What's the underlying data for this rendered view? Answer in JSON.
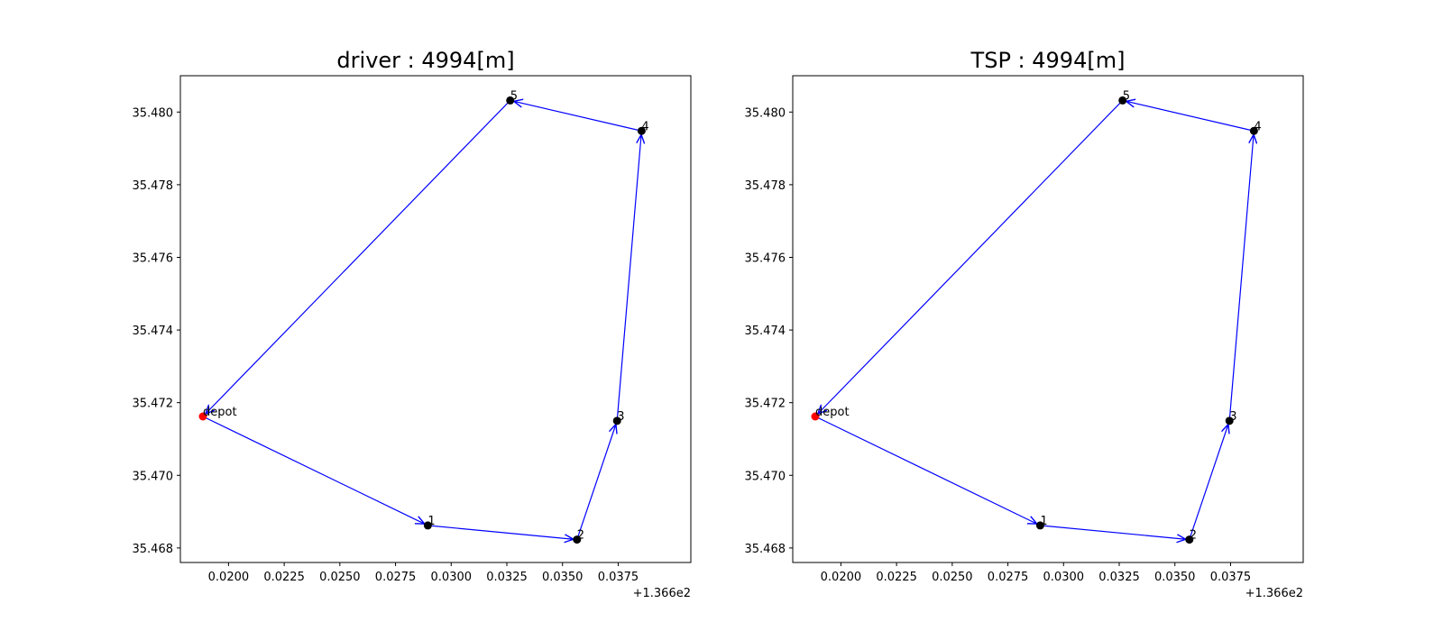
{
  "chart_data": [
    {
      "type": "line",
      "title": "driver : 4994[m]",
      "xlabel": "",
      "ylabel": "",
      "x_offset_label": "+1.366e2",
      "xlim": [
        0.01885,
        0.03975
      ],
      "ylim": [
        35.4676,
        35.481
      ],
      "x_ticks": [
        0.02,
        0.0225,
        0.025,
        0.0275,
        0.03,
        0.0325,
        0.035,
        0.0375
      ],
      "x_tick_labels": [
        "0.0200",
        "0.0225",
        "0.0250",
        "0.0275",
        "0.0300",
        "0.0325",
        "0.0350",
        "0.0375"
      ],
      "y_ticks": [
        35.468,
        35.47,
        35.472,
        35.474,
        35.476,
        35.478,
        35.48
      ],
      "y_tick_labels": [
        "35.468",
        "35.470",
        "35.472",
        "35.474",
        "35.476",
        "35.478",
        "35.480"
      ],
      "points": [
        {
          "label": "depot",
          "x": 0.01885,
          "y": 35.47162,
          "color": "#ff0000"
        },
        {
          "label": "1",
          "x": 0.02895,
          "y": 35.46862,
          "color": "#000000"
        },
        {
          "label": "2",
          "x": 0.03565,
          "y": 35.46823,
          "color": "#000000"
        },
        {
          "label": "3",
          "x": 0.03745,
          "y": 35.4715,
          "color": "#000000"
        },
        {
          "label": "4",
          "x": 0.03855,
          "y": 35.47948,
          "color": "#000000"
        },
        {
          "label": "5",
          "x": 0.03265,
          "y": 35.48032,
          "color": "#000000"
        }
      ],
      "route": [
        "depot",
        "1",
        "2",
        "3",
        "4",
        "5",
        "depot"
      ],
      "route_color": "#0000ff",
      "grid": false,
      "legend": "none"
    },
    {
      "type": "line",
      "title": "TSP : 4994[m]",
      "xlabel": "",
      "ylabel": "",
      "x_offset_label": "+1.366e2",
      "xlim": [
        0.01885,
        0.03975
      ],
      "ylim": [
        35.4676,
        35.481
      ],
      "x_ticks": [
        0.02,
        0.0225,
        0.025,
        0.0275,
        0.03,
        0.0325,
        0.035,
        0.0375
      ],
      "x_tick_labels": [
        "0.0200",
        "0.0225",
        "0.0250",
        "0.0275",
        "0.0300",
        "0.0325",
        "0.0350",
        "0.0375"
      ],
      "y_ticks": [
        35.468,
        35.47,
        35.472,
        35.474,
        35.476,
        35.478,
        35.48
      ],
      "y_tick_labels": [
        "35.468",
        "35.470",
        "35.472",
        "35.474",
        "35.476",
        "35.478",
        "35.480"
      ],
      "points": [
        {
          "label": "depot",
          "x": 0.01885,
          "y": 35.47162,
          "color": "#ff0000"
        },
        {
          "label": "1",
          "x": 0.02895,
          "y": 35.46862,
          "color": "#000000"
        },
        {
          "label": "2",
          "x": 0.03565,
          "y": 35.46823,
          "color": "#000000"
        },
        {
          "label": "3",
          "x": 0.03745,
          "y": 35.4715,
          "color": "#000000"
        },
        {
          "label": "4",
          "x": 0.03855,
          "y": 35.47948,
          "color": "#000000"
        },
        {
          "label": "5",
          "x": 0.03265,
          "y": 35.48032,
          "color": "#000000"
        }
      ],
      "route": [
        "depot",
        "1",
        "2",
        "3",
        "4",
        "5",
        "depot"
      ],
      "route_color": "#0000ff",
      "grid": false,
      "legend": "none"
    }
  ]
}
